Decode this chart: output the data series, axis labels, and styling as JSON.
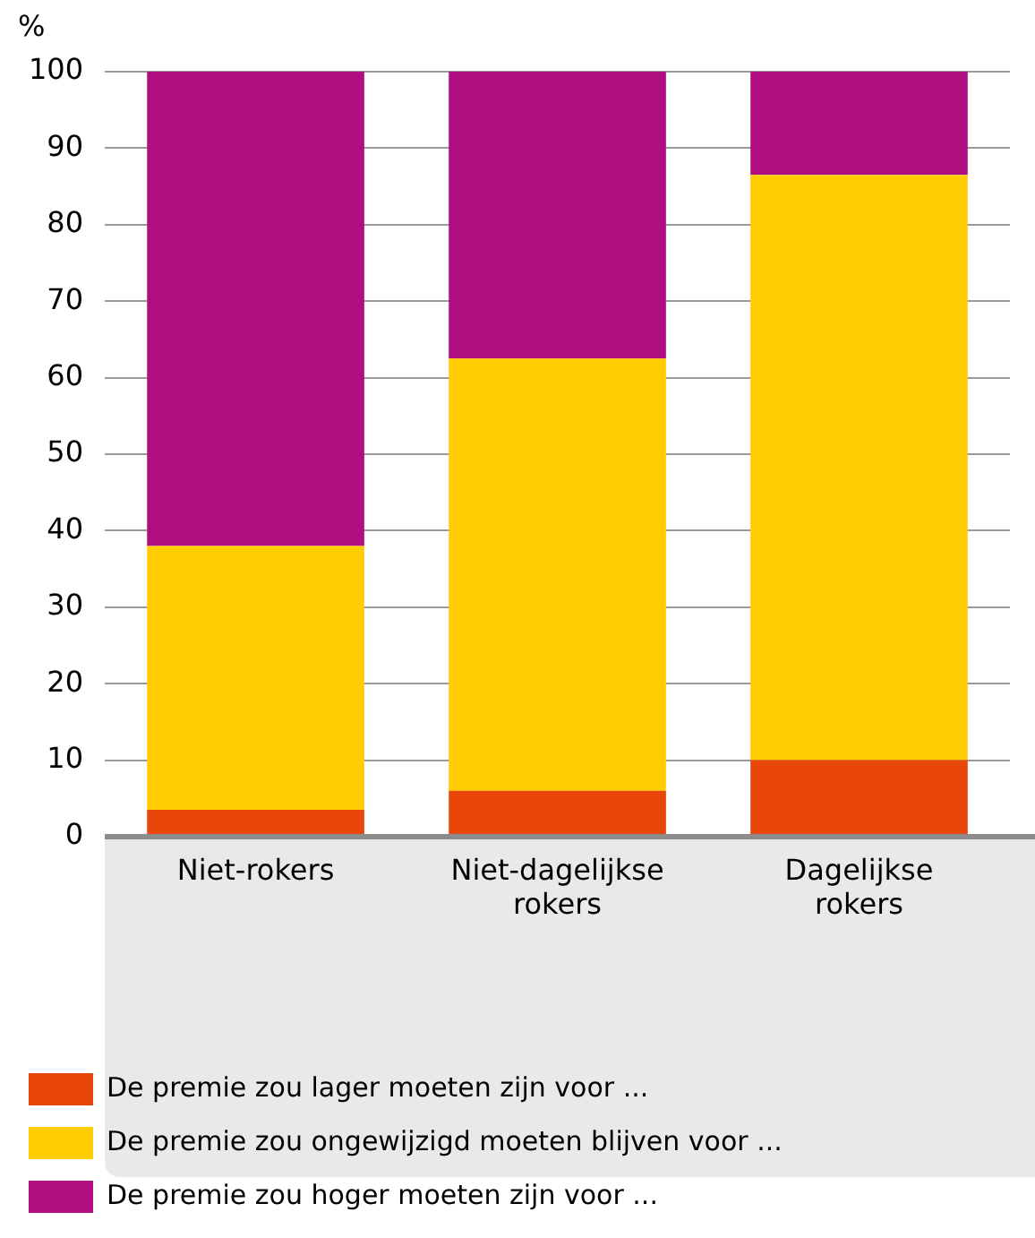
{
  "chart_data": {
    "type": "bar",
    "stacked": true,
    "ylabel": "%",
    "categories": [
      "Niet-rokers",
      "Niet-dagelijkse rokers",
      "Dagelijkse rokers"
    ],
    "series": [
      {
        "name": "De premie zou lager moeten zijn voor ...",
        "color": "#e8460b",
        "values": [
          3.5,
          6,
          10
        ]
      },
      {
        "name": "De premie zou ongewijzigd moeten blijven voor ...",
        "color": "#ffcc00",
        "values": [
          34.5,
          56.5,
          76.5
        ]
      },
      {
        "name": "De premie zou hoger moeten zijn voor ...",
        "color": "#af0f80",
        "values": [
          62,
          37.5,
          13.5
        ]
      }
    ],
    "ylim": [
      0,
      100
    ],
    "yticks": [
      0,
      10,
      20,
      30,
      40,
      50,
      60,
      70,
      80,
      90,
      100
    ],
    "grid": "y",
    "legend": "bottom"
  }
}
